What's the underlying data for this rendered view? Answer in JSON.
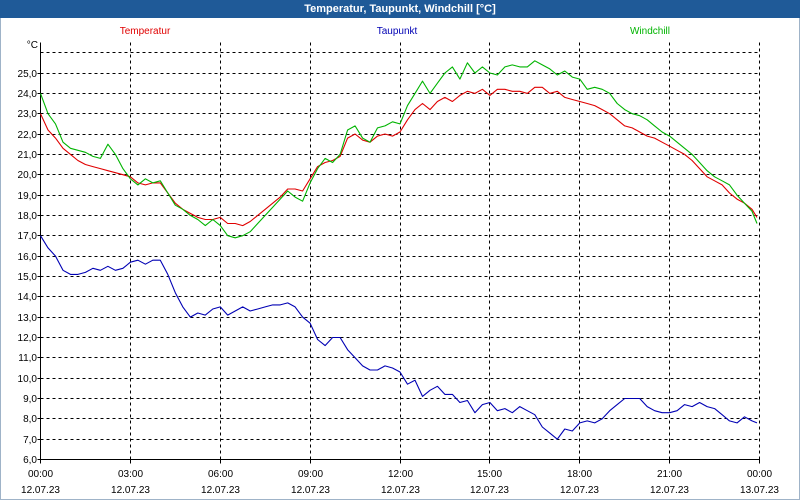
{
  "ui": {
    "title_bar_color": "#1f5a98",
    "frame_color": "#9fb3c8"
  },
  "chart_data": {
    "type": "line",
    "title": "Temperatur, Taupunkt, Windchill [°C]",
    "xlabel": "",
    "ylabel": "°C",
    "xlim": [
      "12.07.23 00:00",
      "13.07.23 00:00"
    ],
    "ylim": [
      6,
      26.5
    ],
    "grid": true,
    "legend": "top",
    "y_ticks": [
      6,
      7,
      8,
      9,
      10,
      11,
      12,
      13,
      14,
      15,
      16,
      17,
      18,
      19,
      20,
      21,
      22,
      23,
      24,
      25
    ],
    "y_tick_labels": [
      "6,0",
      "7,0",
      "8,0",
      "9,0",
      "10,0",
      "11,0",
      "12,0",
      "13,0",
      "14,0",
      "15,0",
      "16,0",
      "17,0",
      "18,0",
      "19,0",
      "20,0",
      "21,0",
      "22,0",
      "23,0",
      "24,0",
      "25,0"
    ],
    "x_ticks": [
      {
        "time": "00:00",
        "date": "12.07.23"
      },
      {
        "time": "03:00",
        "date": "12.07.23"
      },
      {
        "time": "06:00",
        "date": "12.07.23"
      },
      {
        "time": "09:00",
        "date": "12.07.23"
      },
      {
        "time": "12:00",
        "date": "12.07.23"
      },
      {
        "time": "15:00",
        "date": "12.07.23"
      },
      {
        "time": "18:00",
        "date": "12.07.23"
      },
      {
        "time": "21:00",
        "date": "12.07.23"
      },
      {
        "time": "00:00",
        "date": "13.07.23"
      }
    ],
    "x": [
      "00:00",
      "00:15",
      "00:30",
      "00:45",
      "01:00",
      "01:15",
      "01:30",
      "01:45",
      "02:00",
      "02:15",
      "02:30",
      "02:45",
      "03:00",
      "03:15",
      "03:30",
      "03:45",
      "04:00",
      "04:15",
      "04:30",
      "04:45",
      "05:00",
      "05:15",
      "05:30",
      "05:45",
      "06:00",
      "06:15",
      "06:30",
      "06:45",
      "07:00",
      "07:15",
      "07:30",
      "07:45",
      "08:00",
      "08:15",
      "08:30",
      "08:45",
      "09:00",
      "09:15",
      "09:30",
      "09:45",
      "10:00",
      "10:15",
      "10:30",
      "10:45",
      "11:00",
      "11:15",
      "11:30",
      "11:45",
      "12:00",
      "12:15",
      "12:30",
      "12:45",
      "13:00",
      "13:15",
      "13:30",
      "13:45",
      "14:00",
      "14:15",
      "14:30",
      "14:45",
      "15:00",
      "15:15",
      "15:30",
      "15:45",
      "16:00",
      "16:15",
      "16:30",
      "16:45",
      "17:00",
      "17:15",
      "17:30",
      "17:45",
      "18:00",
      "18:15",
      "18:30",
      "18:45",
      "19:00",
      "19:15",
      "19:30",
      "19:45",
      "20:00",
      "20:15",
      "20:30",
      "20:45",
      "21:00",
      "21:15",
      "21:30",
      "21:45",
      "22:00",
      "22:15",
      "22:30",
      "22:45",
      "23:00",
      "23:15",
      "23:30",
      "23:45",
      "23:55"
    ],
    "series": [
      {
        "name": "Temperatur",
        "color": "#e00000",
        "values": [
          23.0,
          22.2,
          21.8,
          21.3,
          21.0,
          20.7,
          20.5,
          20.4,
          20.3,
          20.2,
          20.1,
          20.0,
          19.9,
          19.6,
          19.5,
          19.6,
          19.6,
          19.1,
          18.6,
          18.3,
          18.1,
          17.9,
          17.8,
          17.8,
          17.9,
          17.6,
          17.6,
          17.5,
          17.7,
          18.0,
          18.3,
          18.6,
          18.9,
          19.3,
          19.3,
          19.2,
          19.8,
          20.4,
          20.6,
          20.7,
          20.9,
          21.8,
          22.0,
          21.7,
          21.6,
          21.9,
          22.0,
          21.9,
          22.1,
          22.7,
          23.2,
          23.5,
          23.2,
          23.6,
          23.8,
          23.6,
          23.9,
          24.1,
          24.0,
          24.2,
          23.9,
          24.2,
          24.2,
          24.1,
          24.1,
          24.0,
          24.3,
          24.3,
          24.0,
          24.1,
          23.8,
          23.7,
          23.6,
          23.5,
          23.4,
          23.2,
          23.0,
          22.7,
          22.4,
          22.3,
          22.1,
          21.9,
          21.8,
          21.6,
          21.4,
          21.2,
          21.0,
          20.7,
          20.3,
          19.9,
          19.7,
          19.5,
          19.1,
          18.8,
          18.6,
          18.3,
          17.9
        ]
      },
      {
        "name": "Taupunkt",
        "color": "#0000b4",
        "values": [
          17.0,
          16.4,
          16.0,
          15.3,
          15.1,
          15.1,
          15.2,
          15.4,
          15.3,
          15.5,
          15.3,
          15.4,
          15.7,
          15.8,
          15.6,
          15.8,
          15.8,
          15.1,
          14.2,
          13.5,
          13.0,
          13.2,
          13.1,
          13.4,
          13.5,
          13.1,
          13.3,
          13.5,
          13.3,
          13.4,
          13.5,
          13.6,
          13.6,
          13.7,
          13.5,
          13.0,
          12.7,
          11.9,
          11.6,
          12.0,
          12.0,
          11.4,
          11.0,
          10.6,
          10.4,
          10.4,
          10.6,
          10.5,
          10.3,
          9.7,
          9.9,
          9.1,
          9.4,
          9.6,
          9.2,
          9.2,
          8.8,
          8.9,
          8.3,
          8.7,
          8.8,
          8.4,
          8.5,
          8.3,
          8.6,
          8.4,
          8.2,
          7.6,
          7.3,
          7.0,
          7.5,
          7.4,
          7.8,
          7.9,
          7.8,
          8.0,
          8.4,
          8.7,
          9.0,
          9.0,
          9.0,
          8.6,
          8.4,
          8.3,
          8.3,
          8.4,
          8.7,
          8.6,
          8.8,
          8.6,
          8.5,
          8.2,
          7.9,
          7.8,
          8.1,
          7.9,
          7.8
        ]
      },
      {
        "name": "Windchill",
        "color": "#00b400",
        "values": [
          24.0,
          23.0,
          22.5,
          21.6,
          21.3,
          21.2,
          21.1,
          20.9,
          20.8,
          21.5,
          21.0,
          20.3,
          19.8,
          19.5,
          19.8,
          19.6,
          19.7,
          19.1,
          18.5,
          18.3,
          18.0,
          17.8,
          17.5,
          17.8,
          17.5,
          17.0,
          16.9,
          17.0,
          17.2,
          17.6,
          18.0,
          18.4,
          18.8,
          19.2,
          18.9,
          18.7,
          19.6,
          20.3,
          20.8,
          20.6,
          21.0,
          22.2,
          22.4,
          21.8,
          21.6,
          22.3,
          22.4,
          22.6,
          22.5,
          23.4,
          24.0,
          24.6,
          24.0,
          24.5,
          25.0,
          25.3,
          24.7,
          25.5,
          25.0,
          25.3,
          25.0,
          24.9,
          25.3,
          25.4,
          25.3,
          25.3,
          25.6,
          25.4,
          25.2,
          24.9,
          25.1,
          24.8,
          24.7,
          24.2,
          24.3,
          24.2,
          24.0,
          23.5,
          23.2,
          23.0,
          22.9,
          22.7,
          22.4,
          22.1,
          21.9,
          21.6,
          21.3,
          21.0,
          20.6,
          20.2,
          19.9,
          19.7,
          19.5,
          19.0,
          18.6,
          18.2,
          17.6
        ]
      }
    ]
  }
}
